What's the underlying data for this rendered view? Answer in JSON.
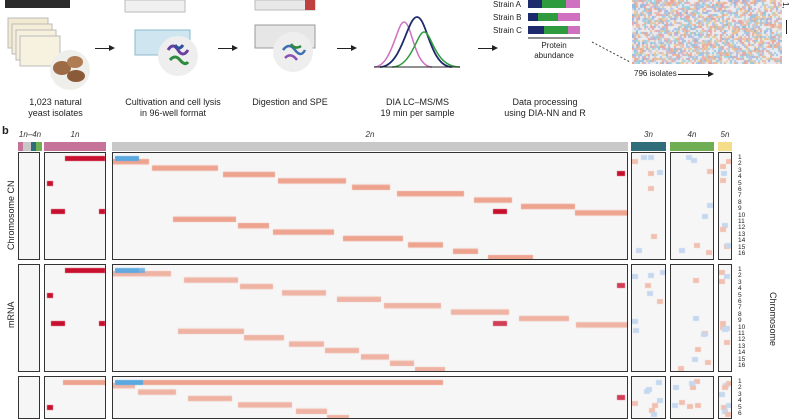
{
  "workflow": {
    "steps": [
      {
        "caption_lines": [
          "1,023 natural",
          "yeast isolates"
        ]
      },
      {
        "caption_lines": [
          "Cultivation and cell lysis",
          "in 96-well format"
        ]
      },
      {
        "caption_lines": [
          "Digestion and SPE"
        ]
      },
      {
        "caption_lines": [
          "DIA LC–MS/MS",
          "19 min per sample"
        ]
      },
      {
        "caption_lines": [
          "Data processing",
          "using DIA-NN and R"
        ]
      }
    ],
    "strains": [
      "Strain A",
      "Strain B",
      "Strain C"
    ],
    "abundance_label_lines": [
      "Protein",
      "abundance"
    ],
    "heatmap_axis_x": "796 isolates",
    "heatmap_axis_y_partial": "1,"
  },
  "panel_b": {
    "label": "b",
    "ploidy_groups": [
      {
        "label": "1n–4n",
        "color": "#d9d9d9"
      },
      {
        "label": "1n",
        "color": "#c6739a"
      },
      {
        "label": "2n",
        "color": "#c8c8c8"
      },
      {
        "label": "3n",
        "color": "#2f6d7a"
      },
      {
        "label": "4n",
        "color": "#6fae52"
      },
      {
        "label": "5n",
        "color": "#f5de8a"
      }
    ],
    "row_labels": [
      "Chromosome CN",
      "mRNA"
    ],
    "right_axis_label": "Chromosome",
    "chromosomes": [
      "1",
      "2",
      "3",
      "4",
      "5",
      "6",
      "7",
      "8",
      "9",
      "10",
      "11",
      "12",
      "13",
      "14",
      "15",
      "16"
    ],
    "colors": {
      "gain_dark": "#c8102e",
      "gain_light": "#eea38f",
      "loss": "#5aa8e0"
    }
  }
}
